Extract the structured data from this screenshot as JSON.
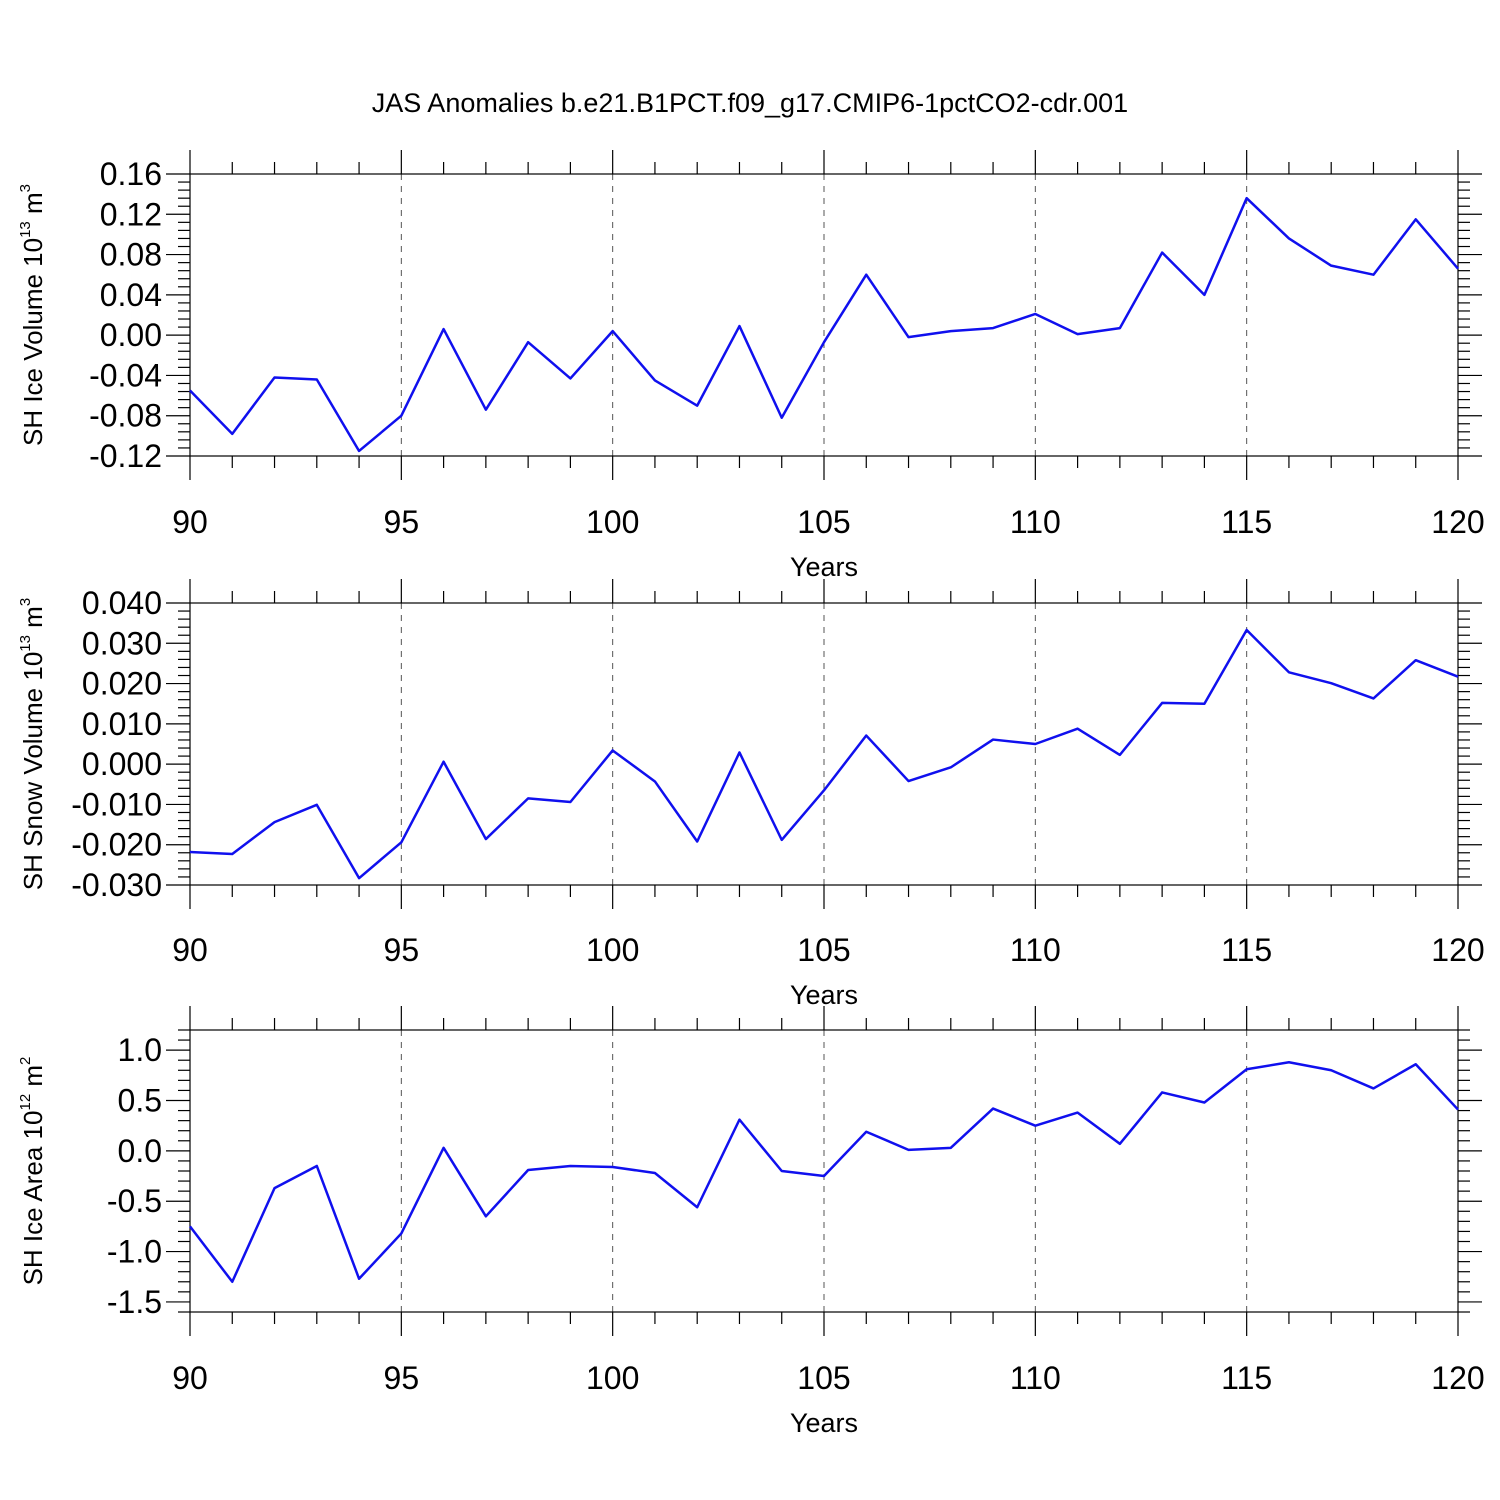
{
  "title": "JAS Anomalies b.e21.B1PCT.f09_g17.CMIP6-1pctCO2-cdr.001",
  "colors": {
    "series": "#1010ee",
    "axis": "#000000",
    "grid": "#555555"
  },
  "chart_data": [
    {
      "type": "line",
      "xlabel": "Years",
      "ylabel": {
        "main": "SH Ice Volume 10",
        "sup1": "13",
        "mid": " m",
        "sup2": "3"
      },
      "xlim": [
        90,
        120
      ],
      "ylim": [
        -0.12,
        0.16
      ],
      "xticks": [
        "90",
        "95",
        "100",
        "105",
        "110",
        "115",
        "120"
      ],
      "yticks": [
        "0.16",
        "0.12",
        "0.08",
        "0.04",
        "0.00",
        "-0.04",
        "-0.08",
        "-0.12"
      ],
      "x": [
        90,
        91,
        92,
        93,
        94,
        95,
        96,
        97,
        98,
        99,
        100,
        101,
        102,
        103,
        104,
        105,
        106,
        107,
        108,
        109,
        110,
        111,
        112,
        113,
        114,
        115,
        116,
        117,
        118,
        119,
        120
      ],
      "values": [
        -0.055,
        -0.098,
        -0.042,
        -0.044,
        -0.115,
        -0.08,
        0.006,
        -0.074,
        -0.007,
        -0.043,
        0.004,
        -0.045,
        -0.07,
        0.009,
        -0.082,
        -0.007,
        0.06,
        -0.002,
        0.004,
        0.007,
        0.021,
        0.001,
        0.007,
        0.082,
        0.04,
        0.136,
        0.096,
        0.069,
        0.06,
        0.115,
        0.066
      ]
    },
    {
      "type": "line",
      "xlabel": "Years",
      "ylabel": {
        "main": "SH Snow Volume 10",
        "sup1": "13",
        "mid": " m",
        "sup2": "3"
      },
      "xlim": [
        90,
        120
      ],
      "ylim": [
        -0.03,
        0.04
      ],
      "xticks": [
        "90",
        "95",
        "100",
        "105",
        "110",
        "115",
        "120"
      ],
      "yticks": [
        "0.040",
        "0.030",
        "0.020",
        "0.010",
        "0.000",
        "-0.010",
        "-0.020",
        "-0.030"
      ],
      "x": [
        90,
        91,
        92,
        93,
        94,
        95,
        96,
        97,
        98,
        99,
        100,
        101,
        102,
        103,
        104,
        105,
        106,
        107,
        108,
        109,
        110,
        111,
        112,
        113,
        114,
        115,
        116,
        117,
        118,
        119,
        120
      ],
      "values": [
        -0.0218,
        -0.0223,
        -0.0144,
        -0.0101,
        -0.0283,
        -0.0194,
        0.0006,
        -0.0186,
        -0.0085,
        -0.0094,
        0.0034,
        -0.0043,
        -0.0192,
        0.0029,
        -0.0188,
        -0.0065,
        0.0071,
        -0.0042,
        -0.0008,
        0.0061,
        0.005,
        0.0088,
        0.0023,
        0.0152,
        0.015,
        0.0333,
        0.0228,
        0.0201,
        0.0163,
        0.0258,
        0.0217
      ]
    },
    {
      "type": "line",
      "xlabel": "Years",
      "ylabel": {
        "main": "SH Ice Area 10",
        "sup1": "12",
        "mid": " m",
        "sup2": "2"
      },
      "xlim": [
        90,
        120
      ],
      "ylim": [
        -1.6,
        1.2
      ],
      "xticks": [
        "90",
        "95",
        "100",
        "105",
        "110",
        "115",
        "120"
      ],
      "yticks": [
        "1.0",
        "0.5",
        "0.0",
        "-0.5",
        "-1.0",
        "-1.5"
      ],
      "ytickvals": [
        1.0,
        0.5,
        0.0,
        -0.5,
        -1.0,
        -1.5
      ],
      "x": [
        90,
        91,
        92,
        93,
        94,
        95,
        96,
        97,
        98,
        99,
        100,
        101,
        102,
        103,
        104,
        105,
        106,
        107,
        108,
        109,
        110,
        111,
        112,
        113,
        114,
        115,
        116,
        117,
        118,
        119,
        120
      ],
      "values": [
        -0.75,
        -1.3,
        -0.37,
        -0.15,
        -1.27,
        -0.82,
        0.03,
        -0.65,
        -0.19,
        -0.15,
        -0.16,
        -0.22,
        -0.56,
        0.31,
        -0.2,
        -0.25,
        0.19,
        0.01,
        0.03,
        0.42,
        0.25,
        0.38,
        0.07,
        0.58,
        0.48,
        0.81,
        0.88,
        0.8,
        0.62,
        0.86,
        0.41
      ]
    }
  ]
}
